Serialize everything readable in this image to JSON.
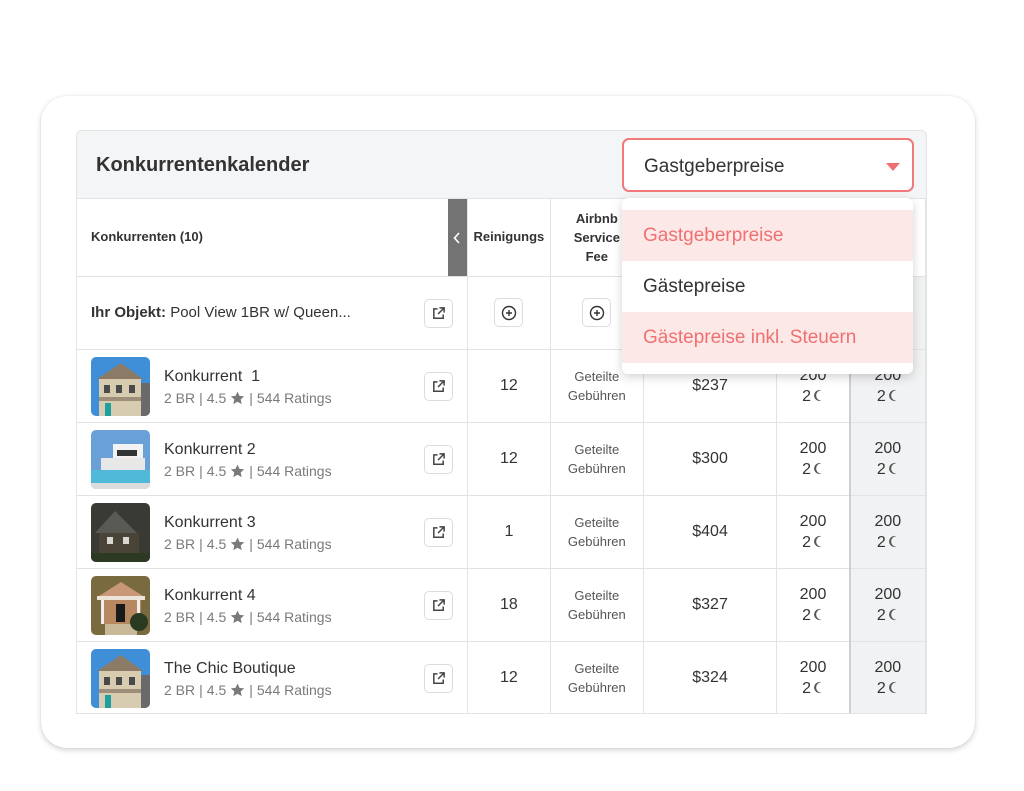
{
  "card": {
    "title": "Konkurrentenkalender"
  },
  "price_select": {
    "value": "Gastgeberpreise",
    "options": [
      {
        "label": "Gastgeberpreise",
        "highlighted": true
      },
      {
        "label": "Gästepreise",
        "highlighted": false
      },
      {
        "label": "Gästepreise inkl. Steuern",
        "highlighted": true
      }
    ],
    "accent_color": "#f07070",
    "highlight_bg": "#fde8e8"
  },
  "table": {
    "columns": {
      "competitors": "Konkurrenten (10)",
      "cleaning": "Reinigungs",
      "service_fee_1": "Airbnb",
      "service_fee_2": "Service",
      "service_fee_3": "Fee"
    },
    "own_listing": {
      "label": "Ihr Objekt:",
      "name": "Pool View 1BR w/ Queen..."
    },
    "rows": [
      {
        "name": "Konkurrent  1",
        "br": "2 BR",
        "rating": "4.5",
        "ratings": "544 Ratings",
        "cleaning": "12",
        "fee_1": "Geteilte",
        "fee_2": "Gebühren",
        "price": "$237",
        "d1_value": "200",
        "d1_nights": "2",
        "d2_value": "200",
        "d2_nights": "2",
        "thumb": "house-beige"
      },
      {
        "name": "Konkurrent 2",
        "br": "2 BR",
        "rating": "4.5",
        "ratings": "544 Ratings",
        "cleaning": "12",
        "fee_1": "Geteilte",
        "fee_2": "Gebühren",
        "price": "$300",
        "d1_value": "200",
        "d1_nights": "2",
        "d2_value": "200",
        "d2_nights": "2",
        "thumb": "house-modern-pool"
      },
      {
        "name": "Konkurrent 3",
        "br": "2 BR",
        "rating": "4.5",
        "ratings": "544 Ratings",
        "cleaning": "1",
        "fee_1": "Geteilte",
        "fee_2": "Gebühren",
        "price": "$404",
        "d1_value": "200",
        "d1_nights": "2",
        "d2_value": "200",
        "d2_nights": "2",
        "thumb": "house-cottage"
      },
      {
        "name": "Konkurrent 4",
        "br": "2 BR",
        "rating": "4.5",
        "ratings": "544 Ratings",
        "cleaning": "18",
        "fee_1": "Geteilte",
        "fee_2": "Gebühren",
        "price": "$327",
        "d1_value": "200",
        "d1_nights": "2",
        "d2_value": "200",
        "d2_nights": "2",
        "thumb": "house-porch"
      },
      {
        "name": "The Chic Boutique",
        "br": "2 BR",
        "rating": "4.5",
        "ratings": "544 Ratings",
        "cleaning": "12",
        "fee_1": "Geteilte",
        "fee_2": "Gebühren",
        "price": "$324",
        "d1_value": "200",
        "d1_nights": "2",
        "d2_value": "200",
        "d2_nights": "2",
        "thumb": "house-beige"
      }
    ]
  }
}
